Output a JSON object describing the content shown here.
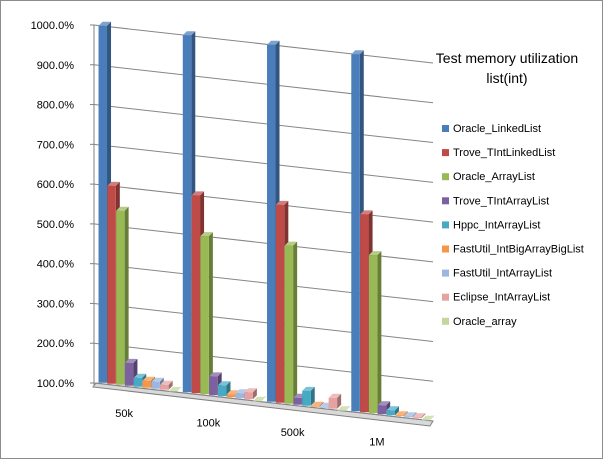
{
  "chart_data": {
    "type": "bar",
    "title_lines": [
      "Test  memory utilization",
      "list(int)"
    ],
    "categories": [
      "50k",
      "100k",
      "500k",
      "1M"
    ],
    "ylim": [
      100,
      1000
    ],
    "ytick_labels": [
      "100.0%",
      "200.0%",
      "300.0%",
      "400.0%",
      "500.0%",
      "600.0%",
      "700.0%",
      "800.0%",
      "900.0%",
      "1000.0%"
    ],
    "ytick_values": [
      100,
      200,
      300,
      400,
      500,
      600,
      700,
      800,
      900,
      1000
    ],
    "grid": true,
    "legend_position": "right",
    "series": [
      {
        "name": "Oracle_LinkedList",
        "color": "#4a7ebb",
        "values": [
          1000,
          1000,
          1000,
          1000
        ]
      },
      {
        "name": "Trove_TIntLinkedList",
        "color": "#be4b48",
        "values": [
          600,
          600,
          600,
          600
        ]
      },
      {
        "name": "Oracle_ArrayList",
        "color": "#98b954",
        "values": [
          540,
          500,
          500,
          500
        ]
      },
      {
        "name": "Trove_TIntArrayList",
        "color": "#7d60a0",
        "values": [
          160,
          150,
          120,
          125
        ]
      },
      {
        "name": "Hppc_IntArrayList",
        "color": "#46aac5",
        "values": [
          125,
          130,
          140,
          115
        ]
      },
      {
        "name": "FastUtil_IntBigArrayBigList",
        "color": "#f79646",
        "values": [
          120,
          110,
          105,
          105
        ]
      },
      {
        "name": "FastUtil_IntArrayList",
        "color": "#9bb7e0",
        "values": [
          120,
          115,
          105,
          105
        ]
      },
      {
        "name": "Eclipse_IntArrayList",
        "color": "#e6a2a0",
        "values": [
          115,
          120,
          130,
          105
        ]
      },
      {
        "name": "Oracle_array",
        "color": "#c3d69b",
        "values": [
          102,
          101,
          101,
          101
        ]
      }
    ]
  }
}
